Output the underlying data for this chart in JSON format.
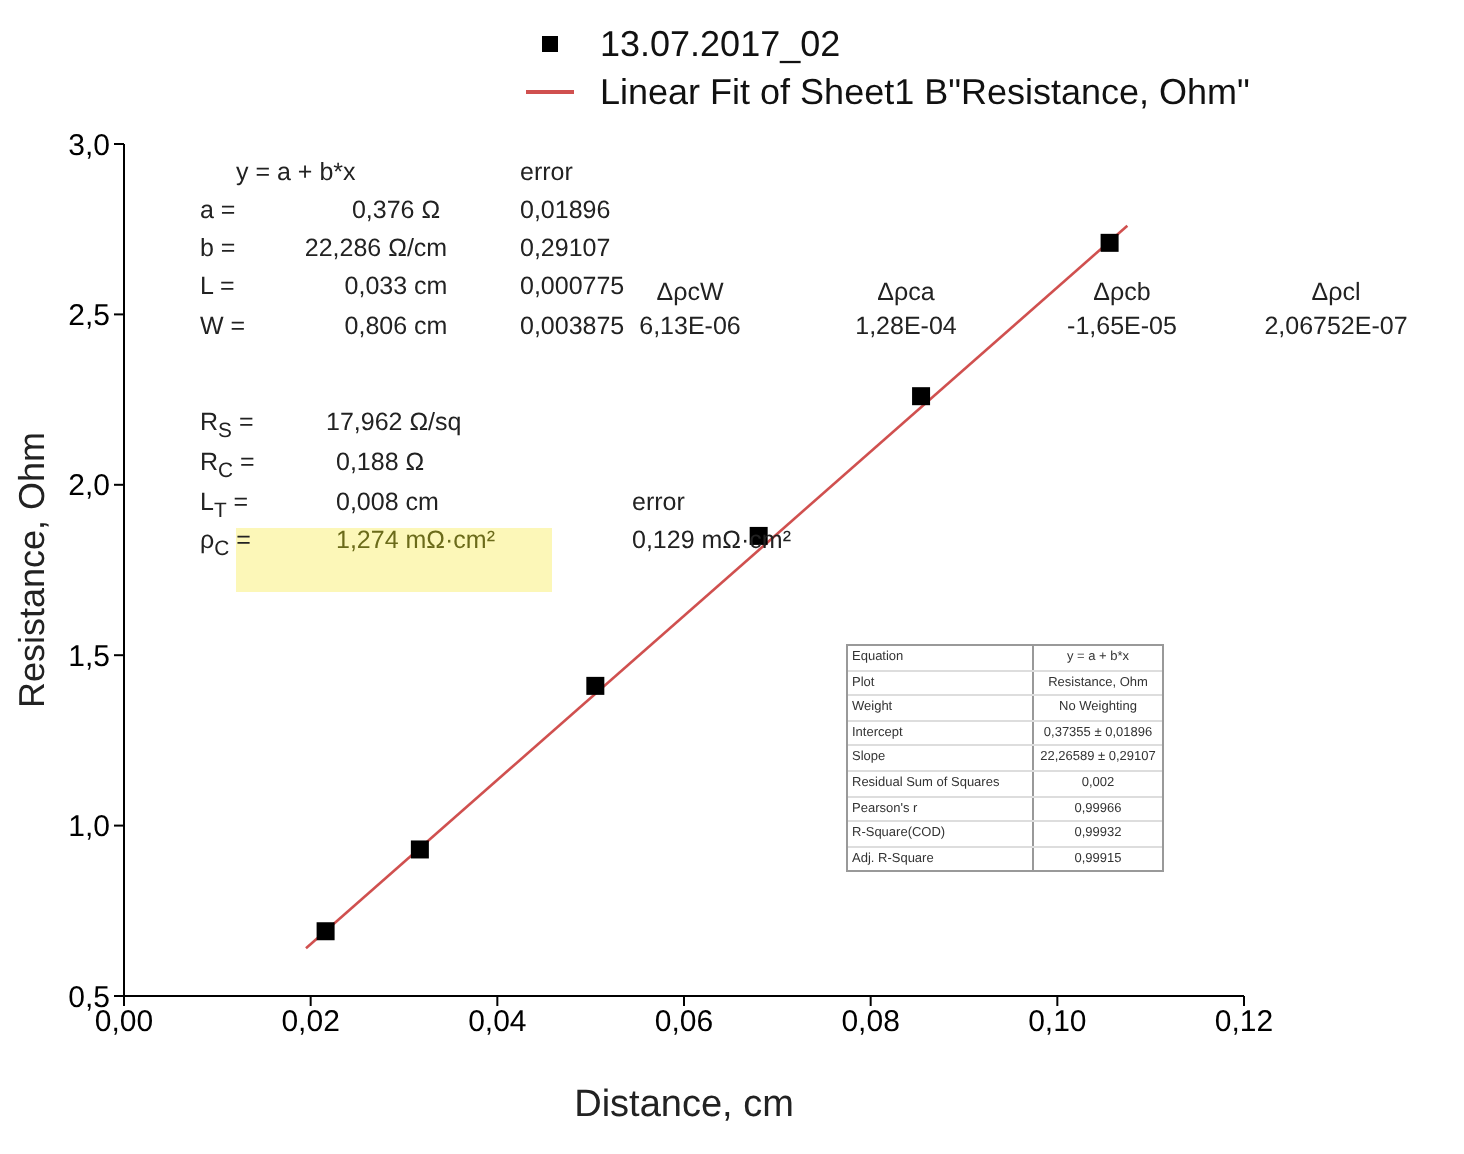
{
  "chart_data": {
    "type": "scatter",
    "xlabel": "Distance, cm",
    "ylabel": "Resistance, Ohm",
    "xlim": [
      0,
      0.12
    ],
    "xticks": [
      {
        "value": 0,
        "label": "0,00"
      },
      {
        "value": 0.02,
        "label": "0,02"
      },
      {
        "value": 0.04,
        "label": "0,04"
      },
      {
        "value": 0.06,
        "label": "0,06"
      },
      {
        "value": 0.08,
        "label": "0,08"
      },
      {
        "value": 0.1,
        "label": "0,10"
      },
      {
        "value": 0.12,
        "label": "0,12"
      }
    ],
    "ylim": [
      0.5,
      3.0
    ],
    "yticks": [
      {
        "value": 0.5,
        "label": "0,5"
      },
      {
        "value": 1.0,
        "label": "1,0"
      },
      {
        "value": 1.5,
        "label": "1,5"
      },
      {
        "value": 2.0,
        "label": "2,0"
      },
      {
        "value": 2.5,
        "label": "2,5"
      },
      {
        "value": 3.0,
        "label": "3,0"
      }
    ],
    "series": [
      {
        "name": "13.07.2017_02",
        "marker": "square",
        "color": "#000000",
        "x": [
          0.0216,
          0.0317,
          0.0505,
          0.068,
          0.0854,
          0.1056
        ],
        "values": [
          0.69,
          0.93,
          1.41,
          1.85,
          2.26,
          2.71
        ]
      },
      {
        "name": "Linear Fit of Sheet1 B\"Resistance, Ohm\"",
        "type": "line",
        "marker": "none",
        "color": "#d0504f",
        "x": [
          0.0195,
          0.1075
        ],
        "values": [
          0.64,
          2.76
        ]
      }
    ],
    "grid": false,
    "legend": "top",
    "annotations": [
      "y = a + b*x",
      "error",
      "a =",
      "0,376 Ω",
      "0,01896",
      "b =",
      "22,286 Ω/cm",
      "0,29107",
      "L =",
      "0,033 cm",
      "0,000775",
      "ΔρcW",
      "Δρca",
      "Δρcb",
      "Δρcl",
      "W =",
      "0,806 cm",
      "0,003875",
      "6,13E-06",
      "1,28E-04",
      "-1,65E-05",
      "2,06752E-07",
      "R$_{S}$ =",
      "17,962 Ω/sq",
      "R$_{C}$ =",
      "0,188 Ω",
      "L$_{T}$ =",
      "0,008 cm",
      "error",
      "ρ$_{C}$ =",
      "1,274 mΩ·cm²",
      "0,129 mΩ·cm²",
      "Equation",
      "y = a + b*x",
      "Plot",
      "Resistance, Ohm",
      "Weight",
      "No Weighting",
      "Intercept",
      "0,37355 ± 0,01896",
      "Slope",
      "22,26589 ± 0,29107",
      "Residual Sum of Squares",
      "0,002",
      "Pearson's r",
      "0,99966",
      "R-Square(COD)",
      "0,99932",
      "Adj. R-Square",
      "0,99915"
    ]
  }
}
